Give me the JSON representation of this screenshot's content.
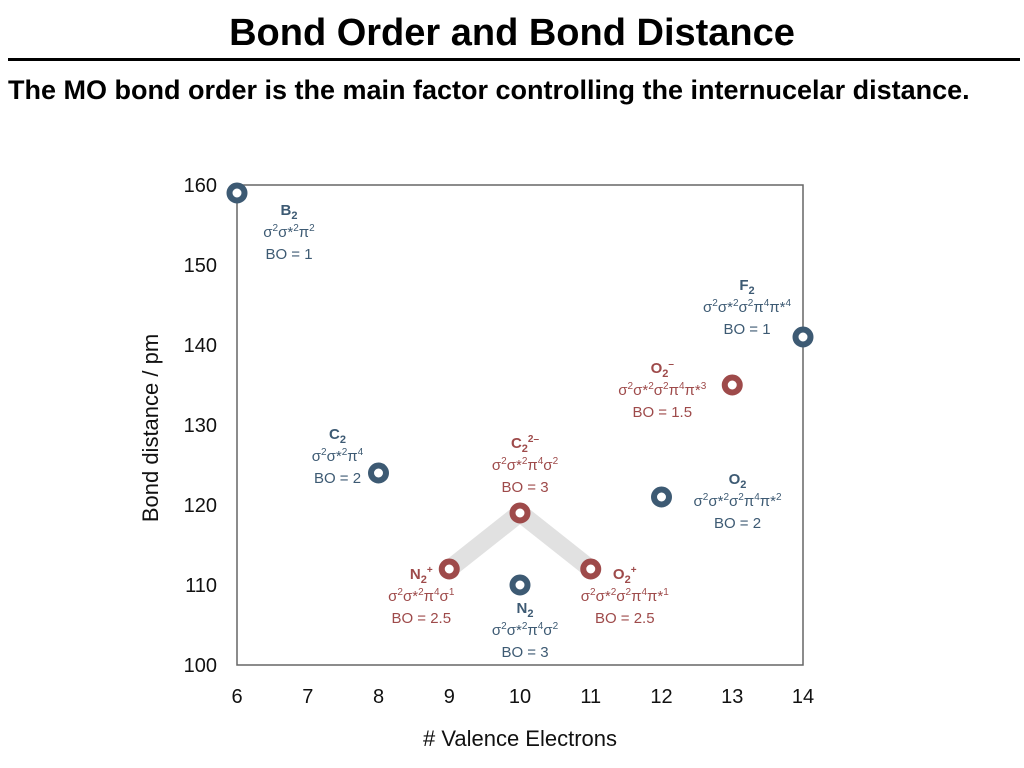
{
  "slide": {
    "title": "Bond Order and Bond Distance",
    "subtitle": "The MO bond order is the main factor controlling the internucelar distance."
  },
  "chart_data": {
    "type": "scatter",
    "xlabel": "# Valence Electrons",
    "ylabel": "Bond distance / pm",
    "xlim": [
      6,
      14
    ],
    "ylim": [
      100,
      160
    ],
    "xticks": [
      6,
      7,
      8,
      9,
      10,
      11,
      12,
      13,
      14
    ],
    "yticks": [
      100,
      110,
      120,
      130,
      140,
      150,
      160
    ],
    "grid": false,
    "colors": {
      "neutral": "#3d5a73",
      "ion": "#9e4a4a",
      "connector": "#e1e1e1"
    },
    "connector": [
      "N2+",
      "C2 2-",
      "O2+"
    ],
    "points": [
      {
        "id": "B2",
        "x": 6,
        "y": 159,
        "kind": "neutral",
        "label": [
          [
            [
              "B",
              ""
            ],
            [
              "2",
              "sub"
            ]
          ],
          [
            [
              "σ",
              ""
            ],
            [
              "2",
              "sup"
            ],
            [
              "σ*",
              ""
            ],
            [
              "2",
              "sup"
            ],
            [
              "π",
              ""
            ],
            [
              "2",
              "sup"
            ]
          ],
          [
            [
              "BO = 1",
              ""
            ]
          ]
        ]
      },
      {
        "id": "C2",
        "x": 8,
        "y": 124,
        "kind": "neutral",
        "label": [
          [
            [
              "C",
              ""
            ],
            [
              "2",
              "sub"
            ]
          ],
          [
            [
              "σ",
              ""
            ],
            [
              "2",
              "sup"
            ],
            [
              "σ*",
              ""
            ],
            [
              "2",
              "sup"
            ],
            [
              "π",
              ""
            ],
            [
              "4",
              "sup"
            ]
          ],
          [
            [
              "BO = 2",
              ""
            ]
          ]
        ]
      },
      {
        "id": "N2+",
        "x": 9,
        "y": 112,
        "kind": "ion",
        "label": [
          [
            [
              "N",
              ""
            ],
            [
              "2",
              "sub"
            ],
            [
              "+",
              "sup"
            ]
          ],
          [
            [
              "σ",
              ""
            ],
            [
              "2",
              "sup"
            ],
            [
              "σ*",
              ""
            ],
            [
              "2",
              "sup"
            ],
            [
              "π",
              ""
            ],
            [
              "4",
              "sup"
            ],
            [
              "σ",
              ""
            ],
            [
              "1",
              "sup"
            ]
          ],
          [
            [
              "BO = 2.5",
              ""
            ]
          ]
        ]
      },
      {
        "id": "N2",
        "x": 10,
        "y": 110,
        "kind": "neutral",
        "label": [
          [
            [
              "N",
              ""
            ],
            [
              "2",
              "sub"
            ]
          ],
          [
            [
              "σ",
              ""
            ],
            [
              "2",
              "sup"
            ],
            [
              "σ*",
              ""
            ],
            [
              "2",
              "sup"
            ],
            [
              "π",
              ""
            ],
            [
              "4",
              "sup"
            ],
            [
              "σ",
              ""
            ],
            [
              "2",
              "sup"
            ]
          ],
          [
            [
              "BO = 3",
              ""
            ]
          ]
        ]
      },
      {
        "id": "C2 2-",
        "x": 10,
        "y": 119,
        "kind": "ion",
        "label": [
          [
            [
              "C",
              ""
            ],
            [
              "2",
              "sub"
            ],
            [
              "2–",
              "sup"
            ]
          ],
          [
            [
              "σ",
              ""
            ],
            [
              "2",
              "sup"
            ],
            [
              "σ*",
              ""
            ],
            [
              "2",
              "sup"
            ],
            [
              "π",
              ""
            ],
            [
              "4",
              "sup"
            ],
            [
              "σ",
              ""
            ],
            [
              "2",
              "sup"
            ]
          ],
          [
            [
              "BO = 3",
              ""
            ]
          ]
        ]
      },
      {
        "id": "O2+",
        "x": 11,
        "y": 112,
        "kind": "ion",
        "label": [
          [
            [
              "O",
              ""
            ],
            [
              "2",
              "sub"
            ],
            [
              "+",
              "sup"
            ]
          ],
          [
            [
              "σ",
              ""
            ],
            [
              "2",
              "sup"
            ],
            [
              "σ*",
              ""
            ],
            [
              "2",
              "sup"
            ],
            [
              "σ",
              ""
            ],
            [
              "2",
              "sup"
            ],
            [
              "π",
              ""
            ],
            [
              "4",
              "sup"
            ],
            [
              "π*",
              ""
            ],
            [
              "1",
              "sup"
            ]
          ],
          [
            [
              "BO = 2.5",
              ""
            ]
          ]
        ]
      },
      {
        "id": "O2",
        "x": 12,
        "y": 121,
        "kind": "neutral",
        "label": [
          [
            [
              "O",
              ""
            ],
            [
              "2",
              "sub"
            ]
          ],
          [
            [
              "σ",
              ""
            ],
            [
              "2",
              "sup"
            ],
            [
              "σ*",
              ""
            ],
            [
              "2",
              "sup"
            ],
            [
              "σ",
              ""
            ],
            [
              "2",
              "sup"
            ],
            [
              "π",
              ""
            ],
            [
              "4",
              "sup"
            ],
            [
              "π*",
              ""
            ],
            [
              "2",
              "sup"
            ]
          ],
          [
            [
              "BO = 2",
              ""
            ]
          ]
        ]
      },
      {
        "id": "O2-",
        "x": 13,
        "y": 135,
        "kind": "ion",
        "label": [
          [
            [
              "O",
              ""
            ],
            [
              "2",
              "sub"
            ],
            [
              "–",
              "sup"
            ]
          ],
          [
            [
              "σ",
              ""
            ],
            [
              "2",
              "sup"
            ],
            [
              "σ*",
              ""
            ],
            [
              "2",
              "sup"
            ],
            [
              "σ",
              ""
            ],
            [
              "2",
              "sup"
            ],
            [
              "π",
              ""
            ],
            [
              "4",
              "sup"
            ],
            [
              "π*",
              ""
            ],
            [
              "3",
              "sup"
            ]
          ],
          [
            [
              "BO = 1.5",
              ""
            ]
          ]
        ]
      },
      {
        "id": "F2",
        "x": 14,
        "y": 141,
        "kind": "neutral",
        "label": [
          [
            [
              "F",
              ""
            ],
            [
              "2",
              "sub"
            ]
          ],
          [
            [
              "σ",
              ""
            ],
            [
              "2",
              "sup"
            ],
            [
              "σ*",
              ""
            ],
            [
              "2",
              "sup"
            ],
            [
              "σ",
              ""
            ],
            [
              "2",
              "sup"
            ],
            [
              "π",
              ""
            ],
            [
              "4",
              "sup"
            ],
            [
              "π*",
              ""
            ],
            [
              "4",
              "sup"
            ]
          ],
          [
            [
              "BO = 1",
              ""
            ]
          ]
        ]
      }
    ]
  }
}
